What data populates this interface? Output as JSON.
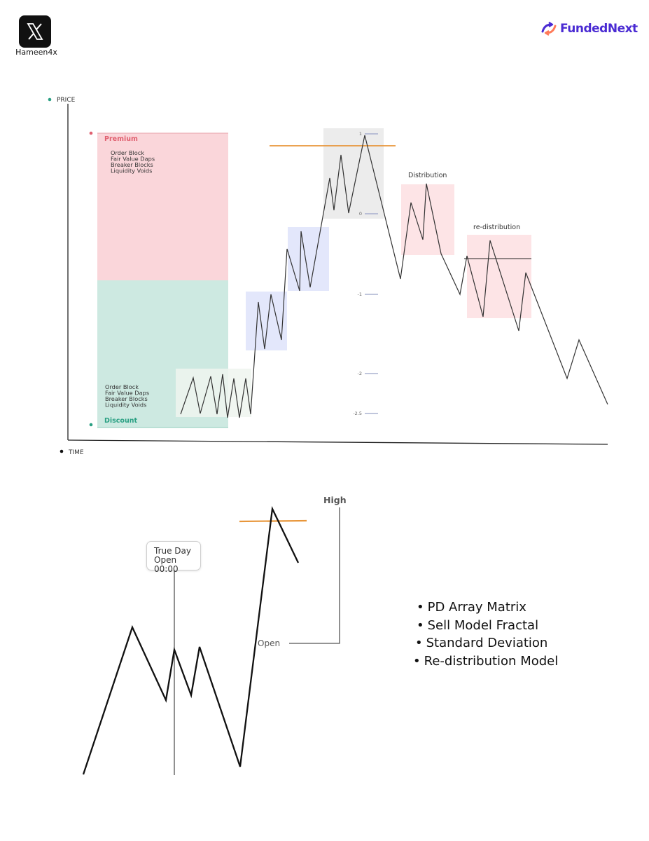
{
  "header": {
    "handle": "Hameen4x",
    "brand_name": "FundedNext",
    "brand_color": "#4a2bd3"
  },
  "top_diagram": {
    "price_label": "PRICE",
    "time_label": "TIME",
    "premium_label": "Premium",
    "discount_label": "Discount",
    "premium_items": [
      "Order Block",
      "Fair Value Daps",
      "Breaker Blocks",
      "Liquidity Voids"
    ],
    "discount_items": [
      "Order Block",
      "Fair Value Daps",
      "Breaker Blocks",
      "Liquidity Voids"
    ],
    "std_dev_levels": [
      "1",
      "0",
      "-1",
      "-2",
      "-2.5"
    ],
    "distribution_label": "Distribution",
    "redistribution_label": "re-distribution",
    "colors": {
      "premium": "#fad6da",
      "discount": "#cde9e1",
      "premium_text": "#e06070",
      "discount_text": "#2aa083",
      "blue_box": "#e3e7fb",
      "grey_box": "#ececec",
      "red_box": "#fde4e6",
      "green_box": "#eef5ee",
      "orange_line": "#e8963a"
    }
  },
  "bottom_diagram": {
    "high_label": "High",
    "open_label": "Open",
    "true_day_line1": "True Day",
    "true_day_line2": "Open 00:00"
  },
  "bullets": [
    "PD Array Matrix",
    "Sell Model Fractal",
    "Standard Deviation",
    "Re-distribution Model"
  ]
}
